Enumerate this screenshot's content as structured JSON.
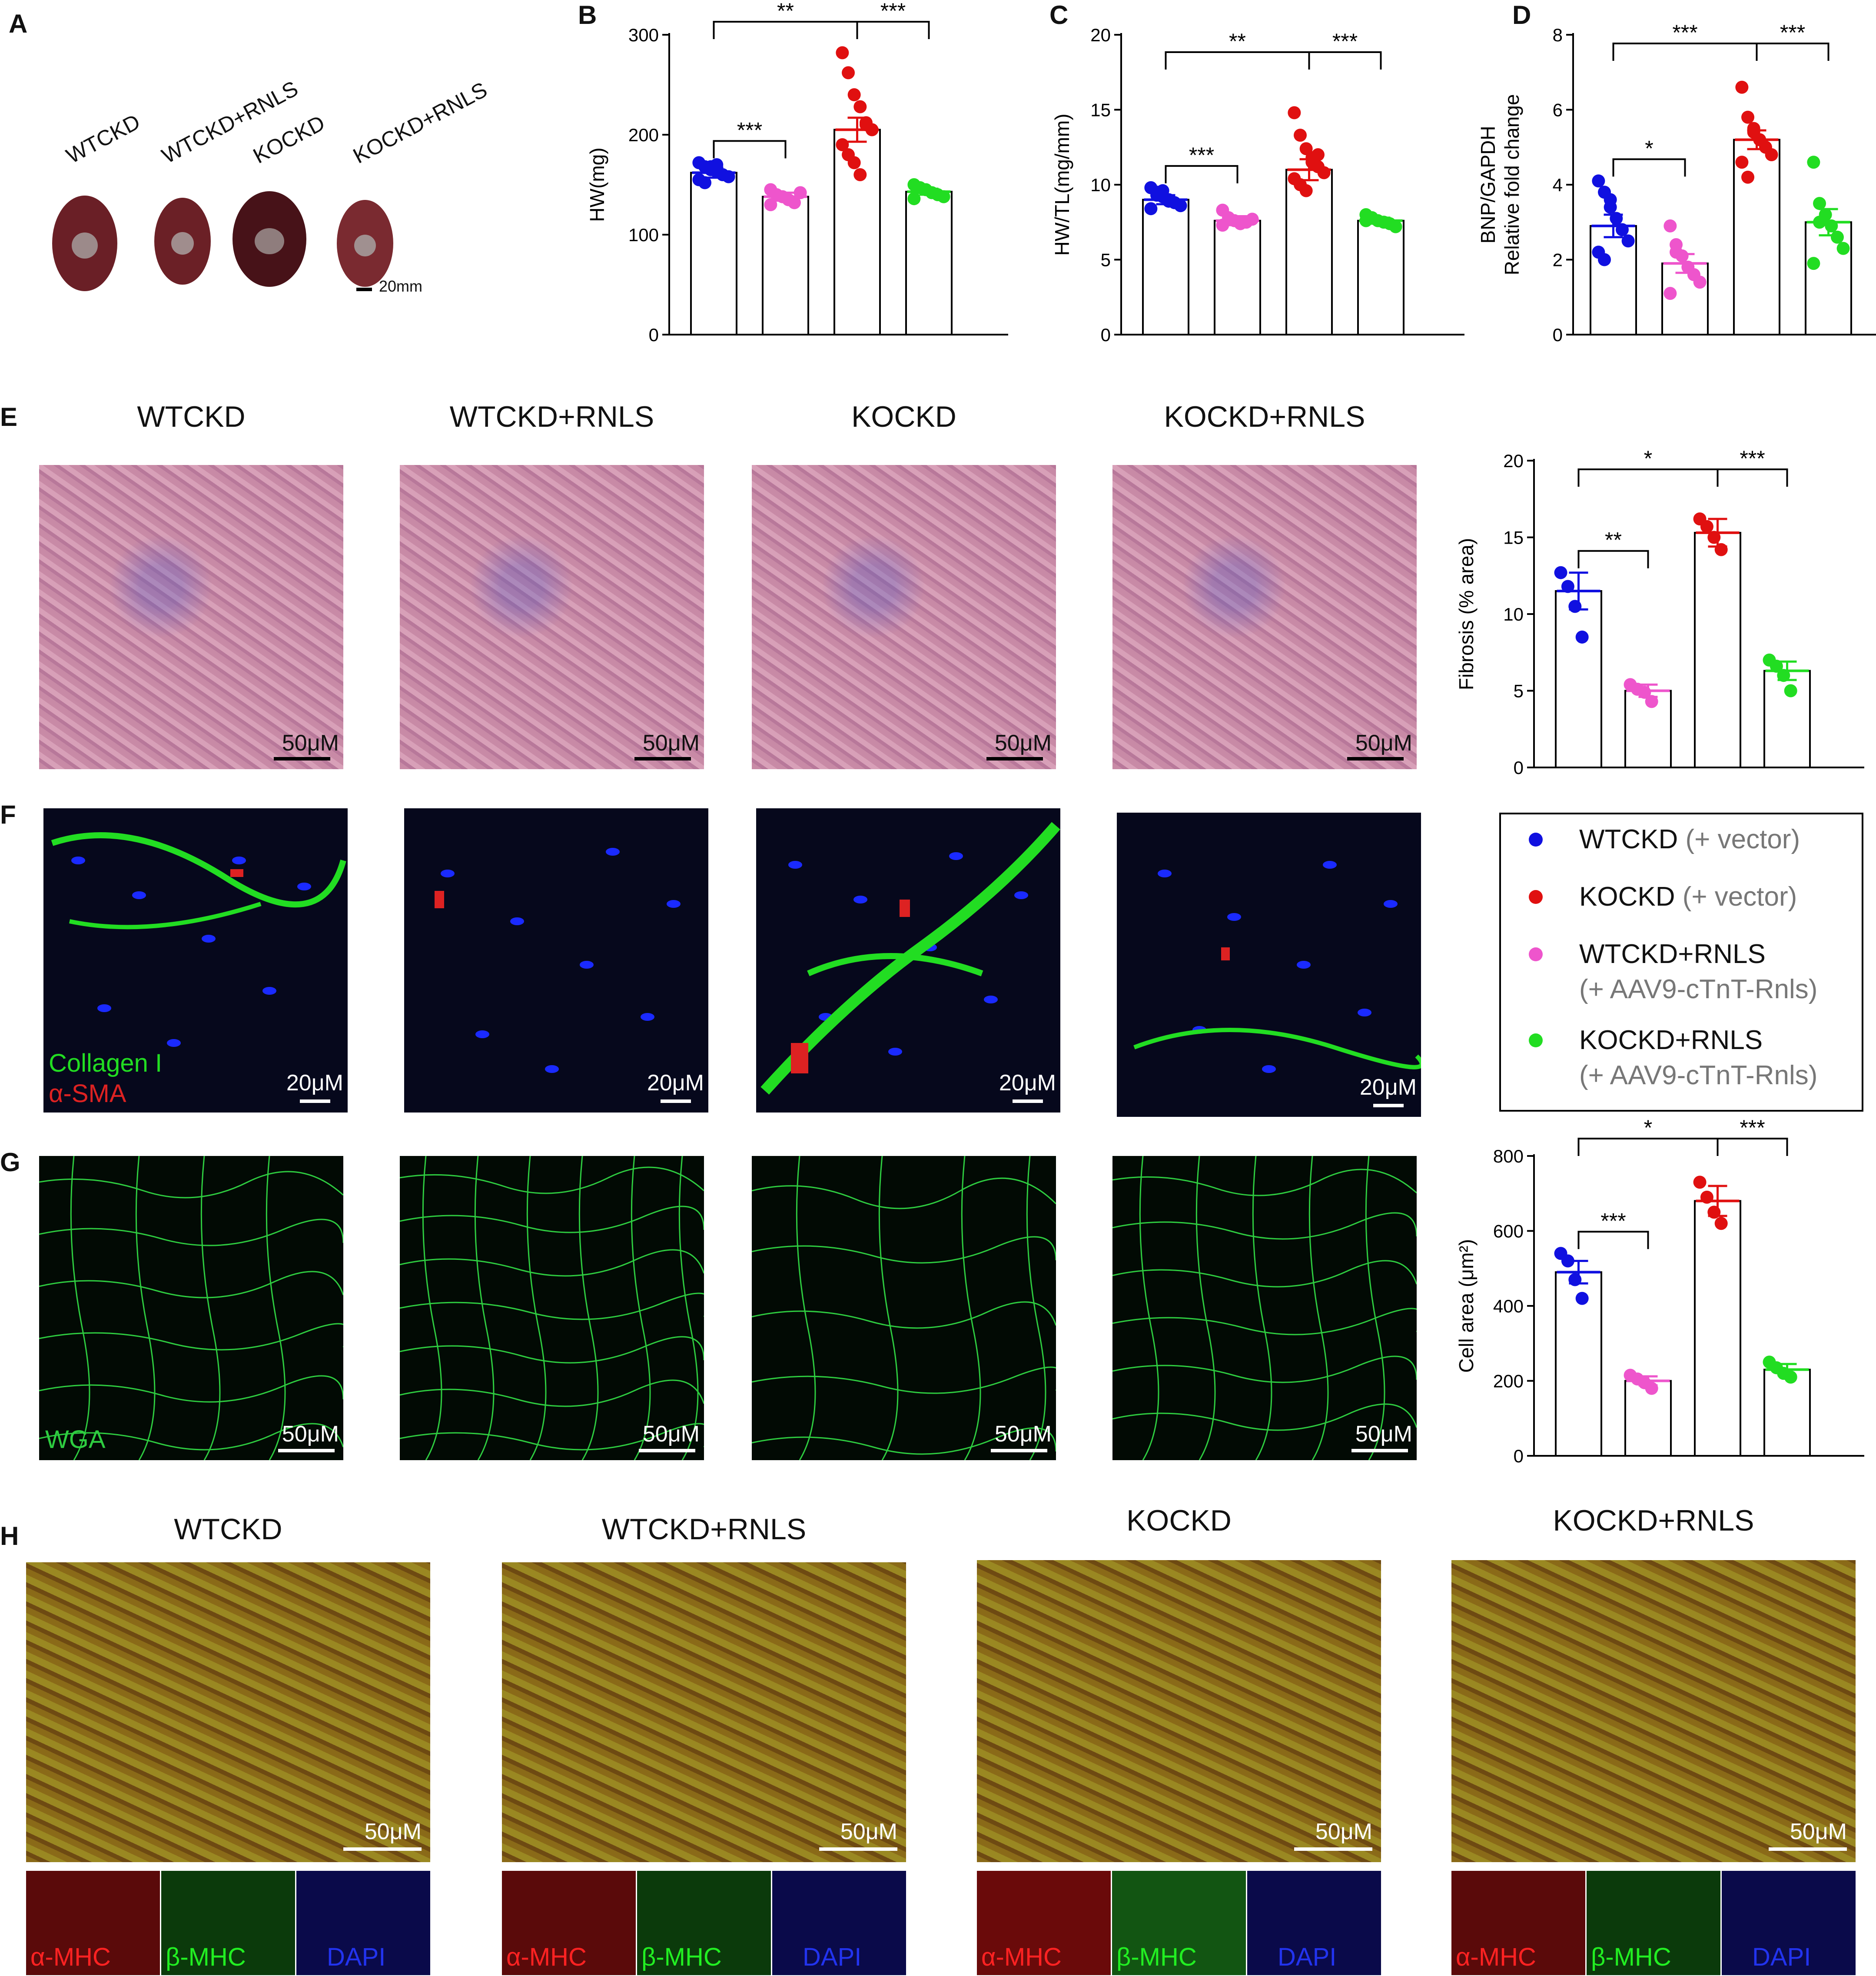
{
  "panels": {
    "A": "A",
    "B": "B",
    "C": "C",
    "D": "D",
    "E": "E",
    "F": "F",
    "G": "G",
    "H": "H"
  },
  "panel_a": {
    "groups": [
      "WTCKD",
      "WTCKD+RNLS",
      "KOCKD",
      "KOCKD+RNLS"
    ],
    "scale": "20mm"
  },
  "row_titles": {
    "e": [
      "WTCKD",
      "WTCKD+RNLS",
      "KOCKD",
      "KOCKD+RNLS"
    ],
    "h": [
      "WTCKD",
      "WTCKD+RNLS",
      "KOCKD",
      "KOCKD+RNLS"
    ]
  },
  "scales": {
    "e": "50μM",
    "f": "20μM",
    "g": "50μM",
    "h": "50μM"
  },
  "stain_labels": {
    "f_green": "Collagen I",
    "f_red": "α-SMA",
    "g": "WGA",
    "h": [
      "α-MHC",
      "β-MHC",
      "DAPI"
    ]
  },
  "legend": [
    {
      "label": "WTCKD",
      "note": "(+ vector)",
      "color": "#1010e0"
    },
    {
      "label": "KOCKD",
      "note": "(+ vector)",
      "color": "#e01010"
    },
    {
      "label": "WTCKD+RNLS",
      "note": "(+ AAV9-cTnT-Rnls)",
      "color": "#ee55cc"
    },
    {
      "label": "KOCKD+RNLS",
      "note": "(+ AAV9-cTnT-Rnls)",
      "color": "#22dd22"
    }
  ],
  "colors": {
    "wt": "#1010e0",
    "wtr": "#ee55cc",
    "ko": "#e01010",
    "kor": "#22dd22"
  },
  "chart_data": [
    {
      "id": "B",
      "type": "bar",
      "ylabel": "HW(mg)",
      "ylim": [
        0,
        300
      ],
      "yticks": [
        0,
        100,
        200,
        300
      ],
      "values": [
        162,
        138,
        205,
        143
      ],
      "errors": [
        5,
        4,
        12,
        3
      ],
      "points": [
        [
          172,
          168,
          165,
          163,
          160,
          158,
          155,
          152,
          168,
          170
        ],
        [
          145,
          140,
          138,
          135,
          132,
          142,
          130
        ],
        [
          282,
          262,
          240,
          228,
          212,
          205,
          190,
          180,
          172,
          160,
          210
        ],
        [
          150,
          147,
          145,
          142,
          140,
          138,
          136
        ]
      ],
      "brackets": [
        {
          "from": 0,
          "to": 1,
          "label": "***"
        },
        {
          "from": 0,
          "to": 2,
          "label": "**"
        },
        {
          "from": 2,
          "to": 3,
          "label": "***"
        }
      ]
    },
    {
      "id": "C",
      "type": "bar",
      "ylabel": "HW/TL(mg/mm)",
      "ylim": [
        0,
        20
      ],
      "yticks": [
        0,
        5,
        10,
        15,
        20
      ],
      "values": [
        9.0,
        7.6,
        11.0,
        7.6
      ],
      "errors": [
        0.3,
        0.3,
        0.7,
        0.2
      ],
      "points": [
        [
          9.8,
          9.5,
          9.2,
          9.0,
          8.8,
          8.6,
          8.4,
          9.3,
          9.6,
          8.9
        ],
        [
          8.3,
          7.8,
          7.6,
          7.4,
          7.5,
          7.7,
          7.3
        ],
        [
          14.8,
          13.3,
          12.4,
          11.8,
          11.2,
          10.8,
          10.4,
          10.0,
          9.6,
          11.5,
          12.0
        ],
        [
          8.0,
          7.8,
          7.6,
          7.5,
          7.4,
          7.2,
          7.6
        ]
      ],
      "brackets": [
        {
          "from": 0,
          "to": 1,
          "label": "***"
        },
        {
          "from": 0,
          "to": 2,
          "label": "**"
        },
        {
          "from": 2,
          "to": 3,
          "label": "***"
        }
      ]
    },
    {
      "id": "D",
      "type": "bar",
      "ylabel": "BNP/GAPDH",
      "ylabel2": "Relative fold change",
      "ylim": [
        0,
        8
      ],
      "yticks": [
        0,
        2,
        4,
        6,
        8
      ],
      "values": [
        2.9,
        1.9,
        5.2,
        3.0
      ],
      "errors": [
        0.3,
        0.25,
        0.25,
        0.35
      ],
      "points": [
        [
          4.1,
          3.8,
          3.4,
          3.1,
          2.8,
          2.5,
          2.2,
          2.0,
          3.6
        ],
        [
          2.9,
          2.4,
          2.1,
          1.8,
          1.6,
          1.4,
          1.1,
          2.2
        ],
        [
          6.6,
          5.8,
          5.4,
          5.2,
          5.0,
          4.8,
          4.6,
          4.2,
          5.5
        ],
        [
          4.6,
          3.5,
          3.2,
          2.9,
          2.6,
          2.3,
          1.9,
          3.0
        ]
      ],
      "brackets": [
        {
          "from": 0,
          "to": 1,
          "label": "*"
        },
        {
          "from": 0,
          "to": 2,
          "label": "***"
        },
        {
          "from": 2,
          "to": 3,
          "label": "***"
        }
      ]
    },
    {
      "id": "E",
      "type": "bar",
      "ylabel": "Fibrosis (% area)",
      "ylim": [
        0,
        20
      ],
      "yticks": [
        0,
        5,
        10,
        15,
        20
      ],
      "values": [
        11.5,
        5.0,
        15.3,
        6.3
      ],
      "errors": [
        1.2,
        0.4,
        0.9,
        0.6
      ],
      "points": [
        [
          12.7,
          11.8,
          10.5,
          8.5
        ],
        [
          5.4,
          5.1,
          4.9,
          4.3
        ],
        [
          16.2,
          15.7,
          15.0,
          14.2
        ],
        [
          7.0,
          6.6,
          6.0,
          5.0
        ]
      ],
      "brackets": [
        {
          "from": 0,
          "to": 1,
          "label": "**"
        },
        {
          "from": 0,
          "to": 2,
          "label": "*"
        },
        {
          "from": 2,
          "to": 3,
          "label": "***"
        }
      ]
    },
    {
      "id": "G",
      "type": "bar",
      "ylabel": "Cell area (μm²)",
      "ylim": [
        0,
        800
      ],
      "yticks": [
        0,
        200,
        400,
        600,
        800
      ],
      "values": [
        490,
        200,
        680,
        230
      ],
      "errors": [
        30,
        12,
        40,
        15
      ],
      "points": [
        [
          540,
          520,
          470,
          420
        ],
        [
          215,
          205,
          195,
          180
        ],
        [
          730,
          690,
          650,
          620
        ],
        [
          250,
          235,
          220,
          210
        ]
      ],
      "brackets": [
        {
          "from": 0,
          "to": 1,
          "label": "***"
        },
        {
          "from": 0,
          "to": 2,
          "label": "*"
        },
        {
          "from": 2,
          "to": 3,
          "label": "***"
        }
      ]
    }
  ]
}
